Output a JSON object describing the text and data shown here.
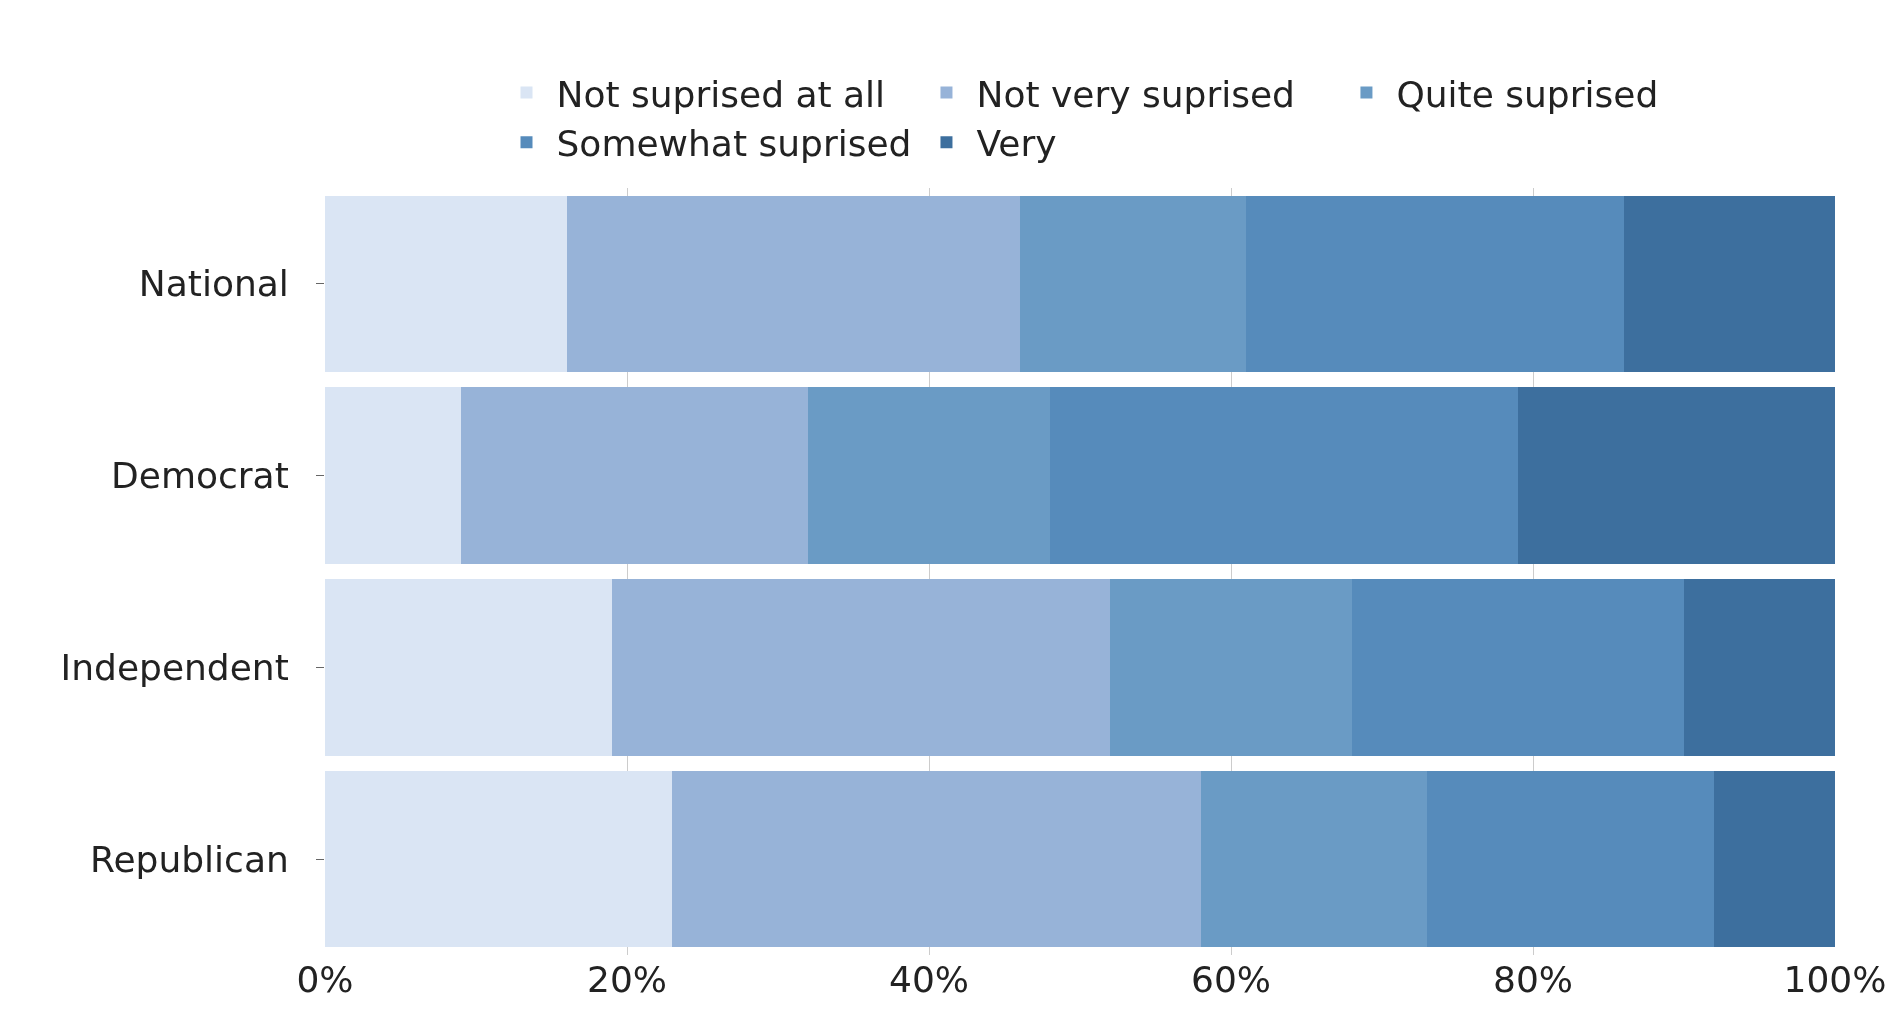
{
  "chart_data": {
    "type": "bar",
    "orientation": "horizontal",
    "stacked": true,
    "categories": [
      "National",
      "Democrat",
      "Independent",
      "Republican"
    ],
    "series": [
      {
        "name": "Not suprised at all",
        "color": "#dae5f4",
        "values": [
          16,
          9,
          19,
          23
        ]
      },
      {
        "name": "Not very suprised",
        "color": "#97b3d8",
        "values": [
          30,
          23,
          33,
          35
        ]
      },
      {
        "name": "Quite suprised",
        "color": "#6a9bc5",
        "values": [
          15,
          16,
          16,
          15
        ]
      },
      {
        "name": "Somewhat suprised",
        "color": "#568bbb",
        "values": [
          25,
          31,
          22,
          19
        ]
      },
      {
        "name": "Very",
        "color": "#3d6f9e",
        "values": [
          14,
          21,
          10,
          8
        ]
      }
    ],
    "xlim": [
      0,
      100
    ],
    "xticks": [
      {
        "value": 0,
        "label": "0%"
      },
      {
        "value": 20,
        "label": "20%"
      },
      {
        "value": 40,
        "label": "40%"
      },
      {
        "value": 60,
        "label": "60%"
      },
      {
        "value": 80,
        "label": "80%"
      },
      {
        "value": 100,
        "label": "100%"
      }
    ],
    "grid": "x",
    "legend": "top"
  }
}
